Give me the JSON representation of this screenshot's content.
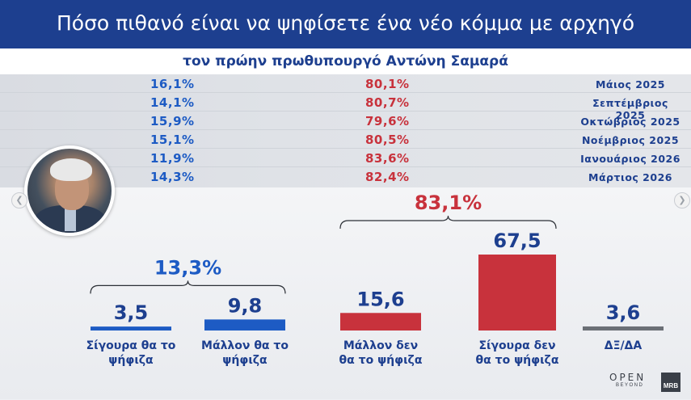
{
  "title": "Πόσο πιθανό είναι να ψηφίσετε ένα νέο κόμμα με αρχηγό",
  "subtitle": "τον πρώην πρωθυπουργό Αντώνη Σαμαρά",
  "history": [
    {
      "yes": "16,1%",
      "no": "80,1%",
      "month": "Μάιος 2025"
    },
    {
      "yes": "14,1%",
      "no": "80,7%",
      "month": "Σεπτέμβριος 2025"
    },
    {
      "yes": "15,9%",
      "no": "79,6%",
      "month": "Οκτώβριος 2025"
    },
    {
      "yes": "15,1%",
      "no": "80,5%",
      "month": "Νοέμβριος 2025"
    },
    {
      "yes": "11,9%",
      "no": "83,6%",
      "month": "Ιανουάριος 2026"
    },
    {
      "yes": "14,3%",
      "no": "82,4%",
      "month": "Μάρτιος 2026"
    }
  ],
  "colors": {
    "blue": "#1d5bc4",
    "red": "#c8323c",
    "gray": "#6b6f76",
    "navy": "#1d3f8f"
  },
  "chart_data": {
    "type": "bar",
    "categories": [
      "Σίγουρα θα το ψήφιζα",
      "Μάλλον θα το ψήφιζα",
      "Μάλλον δεν θα το ψήφιζα",
      "Σίγουρα δεν θα το ψήφιζα",
      "ΔΞ/ΔΑ"
    ],
    "category_lines": [
      [
        "Σίγουρα θα το",
        "ψήφιζα"
      ],
      [
        "Μάλλον θα το",
        "ψήφιζα"
      ],
      [
        "Μάλλον δεν",
        "θα το ψήφιζα"
      ],
      [
        "Σίγουρα δεν",
        "θα το ψήφιζα"
      ],
      [
        "ΔΞ/ΔΑ"
      ]
    ],
    "values": [
      3.5,
      9.8,
      15.6,
      67.5,
      3.6
    ],
    "value_labels": [
      "3,5",
      "9,8",
      "15,6",
      "67,5",
      "3,6"
    ],
    "bar_colors": [
      "#1d5bc4",
      "#1d5bc4",
      "#c8323c",
      "#c8323c",
      "#6b6f76"
    ],
    "groups": [
      {
        "label": "13,3%",
        "color": "#1d5bc4",
        "members": [
          0,
          1
        ]
      },
      {
        "label": "83,1%",
        "color": "#c8323c",
        "members": [
          2,
          3
        ]
      }
    ]
  },
  "logos": {
    "open": "OPEN",
    "beyond": "BEYOND",
    "mrb": "MRB"
  }
}
